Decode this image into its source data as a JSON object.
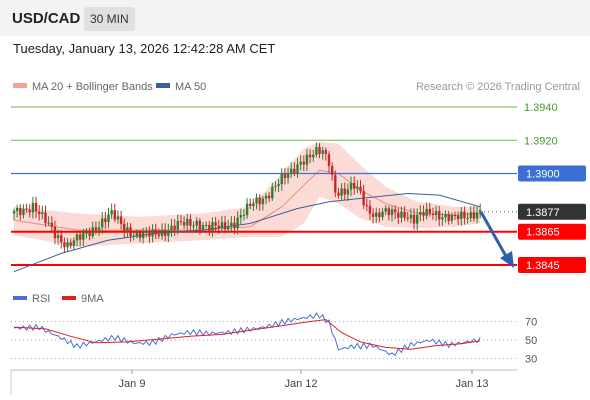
{
  "header": {
    "pair": "USD/CAD",
    "timeframe": "30 MIN"
  },
  "datetime": "Tuesday, January 13, 2026 12:42:28 AM CET",
  "legend": {
    "ma20": "MA 20 + Bollinger Bands",
    "ma50": "MA 50",
    "source": "Research © 2026 Trading Central"
  },
  "rsi_legend": {
    "rsi": "RSI",
    "ma9": "9MA"
  },
  "colors": {
    "up": "#2e7d32",
    "down": "#c62828",
    "support": "#ff0000",
    "resistance": "#3b6fd6",
    "target": "#7ab648",
    "ma50": "#3a5f9e",
    "band": "#fcd5d0",
    "ma20": "#f08a80",
    "arrow": "#2f5fa8"
  },
  "chart_data": {
    "type": "candlestick",
    "y_axis": {
      "min": 1.382,
      "max": 1.395
    },
    "x_ticks": [
      "Jan 9",
      "Jan 12",
      "Jan 13"
    ],
    "levels": [
      {
        "value": 1.394,
        "label": "1.3940",
        "kind": "target"
      },
      {
        "value": 1.392,
        "label": "1.3920",
        "kind": "target"
      },
      {
        "value": 1.39,
        "label": "1.3900",
        "kind": "resistance"
      },
      {
        "value": 1.3877,
        "label": "1.3877",
        "kind": "last"
      },
      {
        "value": 1.3865,
        "label": "1.3865",
        "kind": "support"
      },
      {
        "value": 1.3845,
        "label": "1.3845",
        "kind": "support"
      }
    ],
    "price_path": [
      [
        0,
        1.3876
      ],
      [
        6,
        1.3881
      ],
      [
        9,
        1.3873
      ],
      [
        13,
        1.3864
      ],
      [
        17,
        1.3857
      ],
      [
        22,
        1.3862
      ],
      [
        27,
        1.387
      ],
      [
        31,
        1.3875
      ],
      [
        35,
        1.3868
      ],
      [
        39,
        1.3863
      ],
      [
        43,
        1.3863
      ],
      [
        48,
        1.3866
      ],
      [
        53,
        1.3869
      ],
      [
        58,
        1.3871
      ],
      [
        62,
        1.3867
      ],
      [
        66,
        1.3868
      ],
      [
        70,
        1.3871
      ],
      [
        73,
        1.3876
      ],
      [
        76,
        1.3882
      ],
      [
        80,
        1.3887
      ],
      [
        84,
        1.3894
      ],
      [
        88,
        1.3901
      ],
      [
        91,
        1.3908
      ],
      [
        94,
        1.391
      ],
      [
        96,
        1.3912
      ],
      [
        98,
        1.3913
      ],
      [
        100,
        1.3908
      ],
      [
        102,
        1.389
      ],
      [
        105,
        1.3888
      ],
      [
        108,
        1.3892
      ],
      [
        110,
        1.3889
      ],
      [
        112,
        1.388
      ],
      [
        115,
        1.3874
      ],
      [
        118,
        1.3876
      ],
      [
        121,
        1.3877
      ],
      [
        124,
        1.3876
      ],
      [
        127,
        1.3871
      ],
      [
        130,
        1.3876
      ],
      [
        133,
        1.3878
      ],
      [
        136,
        1.3874
      ],
      [
        139,
        1.3872
      ],
      [
        142,
        1.3875
      ],
      [
        145,
        1.3876
      ],
      [
        148,
        1.3876
      ]
    ],
    "ma20": [
      [
        0,
        1.3872
      ],
      [
        20,
        1.3866
      ],
      [
        40,
        1.3866
      ],
      [
        60,
        1.3866
      ],
      [
        75,
        1.3868
      ],
      [
        85,
        1.388
      ],
      [
        92,
        1.3893
      ],
      [
        97,
        1.3902
      ],
      [
        103,
        1.39
      ],
      [
        110,
        1.389
      ],
      [
        118,
        1.3882
      ],
      [
        128,
        1.3876
      ],
      [
        140,
        1.3875
      ],
      [
        148,
        1.3876
      ]
    ],
    "bb_upper": [
      [
        0,
        1.388
      ],
      [
        20,
        1.3876
      ],
      [
        40,
        1.3874
      ],
      [
        60,
        1.3876
      ],
      [
        75,
        1.388
      ],
      [
        85,
        1.39
      ],
      [
        92,
        1.3915
      ],
      [
        97,
        1.3919
      ],
      [
        103,
        1.3918
      ],
      [
        110,
        1.3905
      ],
      [
        118,
        1.3892
      ],
      [
        128,
        1.3883
      ],
      [
        140,
        1.388
      ],
      [
        148,
        1.388
      ]
    ],
    "bb_lower": [
      [
        0,
        1.3863
      ],
      [
        20,
        1.3856
      ],
      [
        40,
        1.3858
      ],
      [
        60,
        1.386
      ],
      [
        75,
        1.3862
      ],
      [
        85,
        1.3862
      ],
      [
        92,
        1.387
      ],
      [
        97,
        1.3886
      ],
      [
        103,
        1.3882
      ],
      [
        110,
        1.3873
      ],
      [
        118,
        1.3868
      ],
      [
        128,
        1.3867
      ],
      [
        140,
        1.3868
      ],
      [
        148,
        1.387
      ]
    ],
    "ma50": [
      [
        0,
        1.3841
      ],
      [
        15,
        1.3852
      ],
      [
        30,
        1.386
      ],
      [
        45,
        1.3864
      ],
      [
        60,
        1.3866
      ],
      [
        75,
        1.387
      ],
      [
        90,
        1.3879
      ],
      [
        100,
        1.3883
      ],
      [
        115,
        1.3886
      ],
      [
        125,
        1.3888
      ],
      [
        135,
        1.3887
      ],
      [
        148,
        1.388
      ]
    ],
    "rsi": {
      "levels": [
        70,
        50,
        30
      ],
      "rsi_path": [
        [
          0,
          63
        ],
        [
          8,
          66
        ],
        [
          14,
          55
        ],
        [
          20,
          42
        ],
        [
          26,
          46
        ],
        [
          32,
          52
        ],
        [
          38,
          48
        ],
        [
          44,
          49
        ],
        [
          50,
          56
        ],
        [
          56,
          57
        ],
        [
          62,
          55
        ],
        [
          68,
          58
        ],
        [
          74,
          63
        ],
        [
          80,
          66
        ],
        [
          86,
          70
        ],
        [
          92,
          72
        ],
        [
          97,
          75
        ],
        [
          100,
          68
        ],
        [
          103,
          40
        ],
        [
          108,
          45
        ],
        [
          114,
          46
        ],
        [
          120,
          34
        ],
        [
          126,
          43
        ],
        [
          132,
          48
        ],
        [
          138,
          45
        ],
        [
          144,
          50
        ],
        [
          148,
          52
        ]
      ],
      "ma9_path": [
        [
          0,
          64
        ],
        [
          10,
          62
        ],
        [
          18,
          54
        ],
        [
          26,
          47
        ],
        [
          36,
          48
        ],
        [
          46,
          51
        ],
        [
          56,
          54
        ],
        [
          66,
          56
        ],
        [
          76,
          61
        ],
        [
          86,
          66
        ],
        [
          94,
          70
        ],
        [
          99,
          72
        ],
        [
          104,
          58
        ],
        [
          110,
          48
        ],
        [
          118,
          42
        ],
        [
          126,
          40
        ],
        [
          134,
          44
        ],
        [
          142,
          46
        ],
        [
          148,
          49
        ]
      ]
    }
  }
}
